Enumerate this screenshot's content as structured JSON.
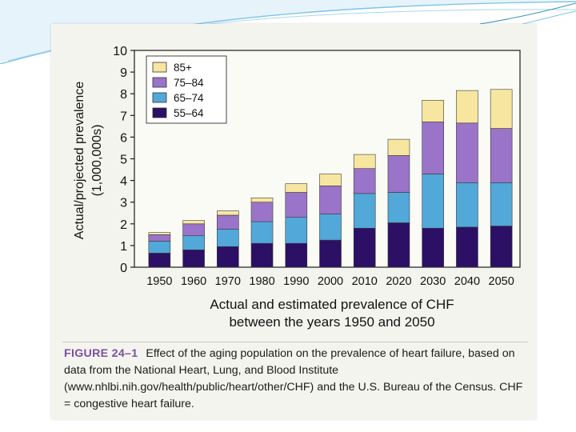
{
  "figure": {
    "caption_label": "FIGURE 24–1",
    "caption_text": "Effect of the aging population on the prevalence of heart failure, based on data from the National Heart, Lung, and Blood Institute (www.nhlbi.nih.gov/health/public/heart/other/CHF) and the U.S. Bureau of the Census. CHF = congestive heart failure."
  },
  "chart_data": {
    "type": "bar",
    "stacked": true,
    "title": "Actual and estimated prevalence of CHF between the years 1950 and 2050",
    "title_lines": [
      "Actual and estimated prevalence of CHF",
      "between the years 1950 and 2050"
    ],
    "xlabel": "",
    "ylabel": "Actual/projected prevalence (1,000,000s)",
    "ylabel_lines": [
      "Actual/projected prevalence",
      "(1,000,000s)"
    ],
    "ylim": [
      0,
      10
    ],
    "yticks": [
      "0",
      "1",
      "2",
      "3",
      "4",
      "5",
      "6",
      "7",
      "8",
      "9",
      "10"
    ],
    "legend_position": "top-left",
    "categories": [
      "1950",
      "1960",
      "1970",
      "1980",
      "1990",
      "2000",
      "2010",
      "2020",
      "2030",
      "2040",
      "2050"
    ],
    "series": [
      {
        "name": "55–64",
        "color": "#2b1065",
        "values": [
          0.65,
          0.8,
          0.95,
          1.1,
          1.1,
          1.25,
          1.8,
          2.05,
          1.8,
          1.85,
          1.9
        ]
      },
      {
        "name": "65–74",
        "color": "#52a8d8",
        "values": [
          0.55,
          0.65,
          0.8,
          1.0,
          1.2,
          1.2,
          1.6,
          1.4,
          2.5,
          2.05,
          2.0
        ]
      },
      {
        "name": "75–84",
        "color": "#9a74c8",
        "values": [
          0.3,
          0.55,
          0.65,
          0.9,
          1.15,
          1.3,
          1.15,
          1.7,
          2.4,
          2.75,
          2.5
        ]
      },
      {
        "name": "85+",
        "color": "#f7e6a0",
        "values": [
          0.1,
          0.15,
          0.2,
          0.2,
          0.4,
          0.55,
          0.65,
          0.75,
          1.0,
          1.5,
          1.8
        ]
      }
    ]
  }
}
